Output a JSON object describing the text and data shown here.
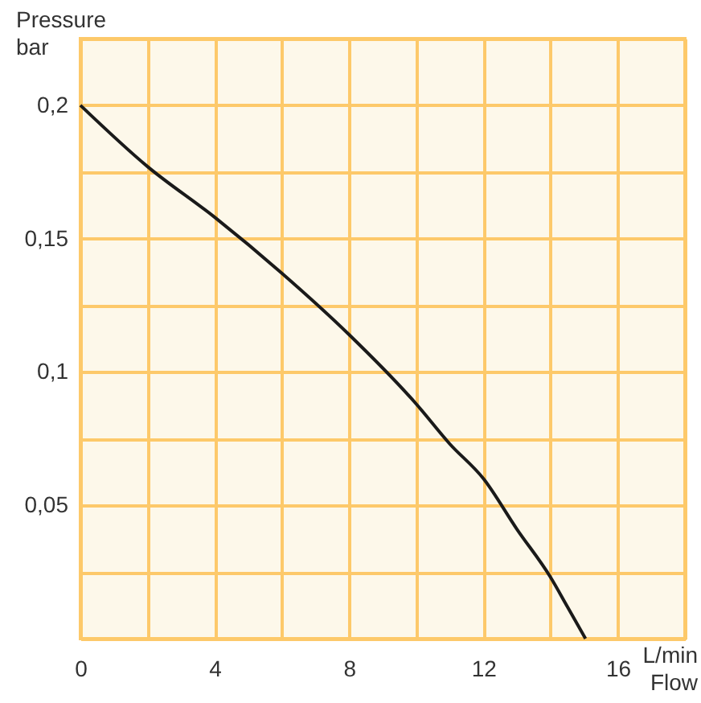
{
  "chart_data": {
    "type": "line",
    "ylabel": "Pressure\nbar",
    "xlabel": "L/min\nFlow",
    "x": [
      0,
      2,
      4,
      6,
      8,
      10,
      11,
      12,
      13,
      14,
      14.5,
      15.04
    ],
    "series": [
      {
        "color": "#1a1a1a",
        "values": [
          0.2,
          0.177,
          0.158,
          0.137,
          0.114,
          0.088,
          0.073,
          0.06,
          0.041,
          0.023,
          0.012,
          0
        ]
      }
    ],
    "xlim": [
      0,
      18
    ],
    "ylim": [
      0,
      0.225
    ],
    "xticks": [
      0,
      {
        "value": 2,
        "label": null
      },
      4,
      {
        "value": 6,
        "label": null
      },
      8,
      {
        "value": 10,
        "label": null
      },
      12,
      {
        "value": 14,
        "label": null
      },
      16,
      {
        "value": 18,
        "label": null
      }
    ],
    "yticks": [
      {
        "value": 0,
        "label": null
      },
      {
        "value": 0.025,
        "label": null
      },
      {
        "value": 0.05,
        "label": "0,05"
      },
      {
        "value": 0.075,
        "label": null
      },
      {
        "value": 0.1,
        "label": "0,1"
      },
      {
        "value": 0.125,
        "label": null
      },
      {
        "value": 0.15,
        "label": "0,15"
      },
      {
        "value": 0.175,
        "label": null
      },
      {
        "value": 0.2,
        "label": "0,2"
      },
      {
        "value": 0.225,
        "label": null
      }
    ],
    "grid": true,
    "line_style": "solid",
    "marker": "none"
  }
}
